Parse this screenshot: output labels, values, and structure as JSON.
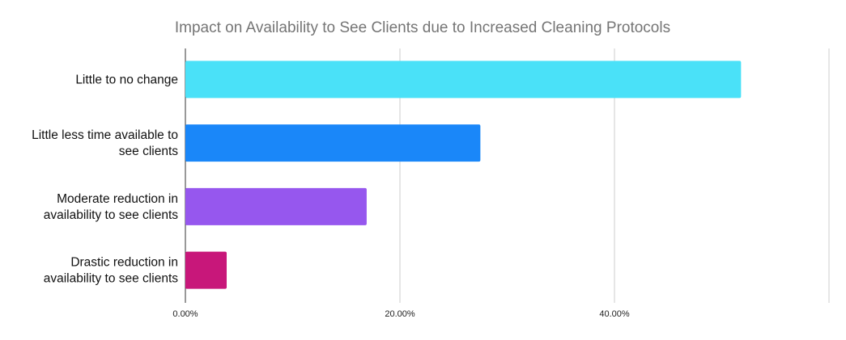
{
  "chart_data": {
    "type": "bar",
    "orientation": "horizontal",
    "title": "Impact on Availability to See Clients due to Increased Cleaning Protocols",
    "xlabel": "",
    "ylabel": "",
    "categories": [
      [
        "Little to no change"
      ],
      [
        "Little less time available to",
        "see clients"
      ],
      [
        "Moderate reduction in",
        "availability to see clients"
      ],
      [
        "Drastic reduction in",
        "availability to see clients"
      ]
    ],
    "values": [
      51.8,
      27.5,
      16.9,
      3.85
    ],
    "colors": [
      "#4ae1f8",
      "#1a87f9",
      "#9657ee",
      "#c8177a"
    ],
    "xlim": [
      0,
      60
    ],
    "xticks": [
      0,
      20,
      40,
      60
    ],
    "xtick_labels": [
      "0.00%",
      "20.00%",
      "40.00%",
      ""
    ],
    "grid": true,
    "legend": "none"
  }
}
